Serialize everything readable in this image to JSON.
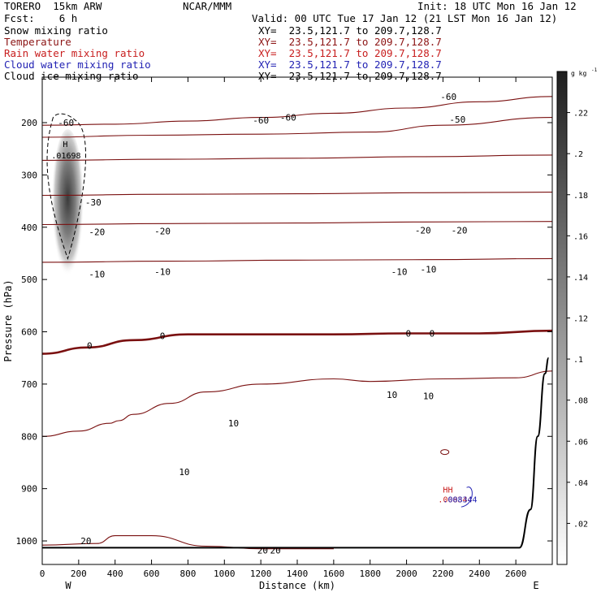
{
  "header": {
    "model": "TORERO  15km ARW",
    "center": "NCAR/MMM",
    "init": "Init: 18 UTC Mon 16 Jan 12",
    "fcst": "Fcst:    6 h",
    "valid": "Valid: 00 UTC Tue 17 Jan 12 (21 LST Mon 16 Jan 12)"
  },
  "fields": [
    {
      "name": "Snow mixing ratio",
      "xy": "XY=  23.5,121.7 to 209.7,128.7",
      "color": "#000000"
    },
    {
      "name": "Temperature",
      "xy": "XY=  23.5,121.7 to 209.7,128.7",
      "color": "#8c1414"
    },
    {
      "name": "Rain water mixing ratio",
      "xy": "XY=  23.5,121.7 to 209.7,128.7",
      "color": "#c81e1e"
    },
    {
      "name": "Cloud water mixing ratio",
      "xy": "XY=  23.5,121.7 to 209.7,128.7",
      "color": "#2323b4"
    },
    {
      "name": "Cloud ice mixing ratio",
      "xy": "XY=  23.5,121.7 to 209.7,128.7",
      "color": "#000000"
    }
  ],
  "chart_data": {
    "type": "contour cross-section",
    "xlabel": "Distance (km)",
    "ylabel": "Pressure (hPa)",
    "x_ticks": [
      0,
      200,
      400,
      600,
      800,
      1000,
      1200,
      1400,
      1600,
      1800,
      2000,
      2200,
      2400,
      2600
    ],
    "y_ticks": [
      200,
      300,
      400,
      500,
      600,
      700,
      800,
      900,
      1000
    ],
    "xlim": [
      0,
      2800
    ],
    "ylim": [
      1045,
      113
    ],
    "x_end_labels": {
      "left": "W",
      "right": "E"
    },
    "colorbar": {
      "units": "g kg",
      "units_exp": "-1",
      "labels": [
        ".22",
        ".2",
        ".18",
        ".16",
        ".14",
        ".12",
        ".1",
        ".08",
        ".06",
        ".04",
        ".02"
      ],
      "label_values": [
        0.22,
        0.2,
        0.18,
        0.16,
        0.14,
        0.12,
        0.1,
        0.08,
        0.06,
        0.04,
        0.02
      ],
      "range": [
        0,
        0.24
      ]
    },
    "temperature_contours": [
      {
        "level": -60,
        "points": [
          [
            0,
            205
          ],
          [
            400,
            203
          ],
          [
            800,
            197
          ],
          [
            1200,
            190
          ],
          [
            1600,
            182
          ],
          [
            2000,
            172
          ],
          [
            2400,
            160
          ],
          [
            2800,
            150
          ]
        ],
        "labels": [
          [
            130,
            200
          ],
          [
            1200,
            195
          ],
          [
            1350,
            190
          ],
          [
            2230,
            150
          ]
        ]
      },
      {
        "level": -50,
        "points": [
          [
            0,
            228
          ],
          [
            600,
            224
          ],
          [
            1200,
            222
          ],
          [
            1800,
            218
          ],
          [
            2200,
            205
          ],
          [
            2800,
            190
          ]
        ],
        "labels": [
          [
            2280,
            194
          ]
        ]
      },
      {
        "level": -40,
        "points": [
          [
            0,
            272
          ],
          [
            700,
            270
          ],
          [
            1400,
            268
          ],
          [
            2100,
            265
          ],
          [
            2800,
            262
          ]
        ],
        "labels": []
      },
      {
        "level": -30,
        "points": [
          [
            0,
            339
          ],
          [
            700,
            337
          ],
          [
            1400,
            336
          ],
          [
            2100,
            334
          ],
          [
            2800,
            333
          ]
        ],
        "labels": [
          [
            280,
            352
          ]
        ]
      },
      {
        "level": -20,
        "points": [
          [
            0,
            395
          ],
          [
            700,
            393
          ],
          [
            1400,
            392
          ],
          [
            2100,
            390
          ],
          [
            2800,
            389
          ]
        ],
        "labels": [
          [
            300,
            409
          ],
          [
            660,
            407
          ],
          [
            2090,
            406
          ],
          [
            2290,
            406
          ]
        ]
      },
      {
        "level": -10,
        "points": [
          [
            0,
            467
          ],
          [
            700,
            465
          ],
          [
            1400,
            463
          ],
          [
            2100,
            462
          ],
          [
            2800,
            460
          ]
        ],
        "labels": [
          [
            300,
            490
          ],
          [
            660,
            485
          ],
          [
            1960,
            485
          ],
          [
            2120,
            480
          ]
        ]
      },
      {
        "level": 0,
        "bold": true,
        "points": [
          [
            0,
            642
          ],
          [
            250,
            630
          ],
          [
            500,
            616
          ],
          [
            800,
            605
          ],
          [
            1200,
            605
          ],
          [
            1600,
            605
          ],
          [
            2000,
            603
          ],
          [
            2400,
            603
          ],
          [
            2800,
            598
          ]
        ],
        "labels": [
          [
            260,
            626
          ],
          [
            660,
            608
          ],
          [
            2010,
            603
          ],
          [
            2140,
            603
          ]
        ]
      },
      {
        "level": 10,
        "points": [
          [
            0,
            800
          ],
          [
            200,
            790
          ],
          [
            370,
            775
          ],
          [
            420,
            770
          ],
          [
            500,
            758
          ],
          [
            700,
            737
          ],
          [
            900,
            715
          ],
          [
            1200,
            700
          ],
          [
            1600,
            690
          ],
          [
            1800,
            695
          ],
          [
            2200,
            690
          ],
          [
            2600,
            688
          ],
          [
            2800,
            675
          ]
        ],
        "labels": [
          [
            1920,
            720
          ],
          [
            2120,
            723
          ],
          [
            1050,
            775
          ],
          [
            780,
            868
          ]
        ]
      },
      {
        "level": 20,
        "points": [
          [
            0,
            1008
          ],
          [
            300,
            1005
          ],
          [
            400,
            990
          ],
          [
            600,
            990
          ],
          [
            900,
            1010
          ],
          [
            1200,
            1015
          ],
          [
            1600,
            1015
          ]
        ],
        "labels": [
          [
            240,
            1000
          ],
          [
            1210,
            1018
          ],
          [
            1280,
            1018
          ]
        ]
      }
    ],
    "snow_max": {
      "x": 140,
      "p": 200,
      "value": ".01698",
      "label": "H"
    },
    "rain_max": {
      "x": 2200,
      "p": 920,
      "value": ".008344",
      "label": "HH"
    },
    "cloud_water_max": {
      "x": 2200,
      "p": 920,
      "value": ".008344",
      "label": "HH"
    },
    "terrain": {
      "sea_level_p": 1013,
      "points": [
        [
          0,
          1013
        ],
        [
          2620,
          1013
        ],
        [
          2680,
          940
        ],
        [
          2720,
          800
        ],
        [
          2760,
          680
        ],
        [
          2780,
          650
        ]
      ]
    }
  }
}
